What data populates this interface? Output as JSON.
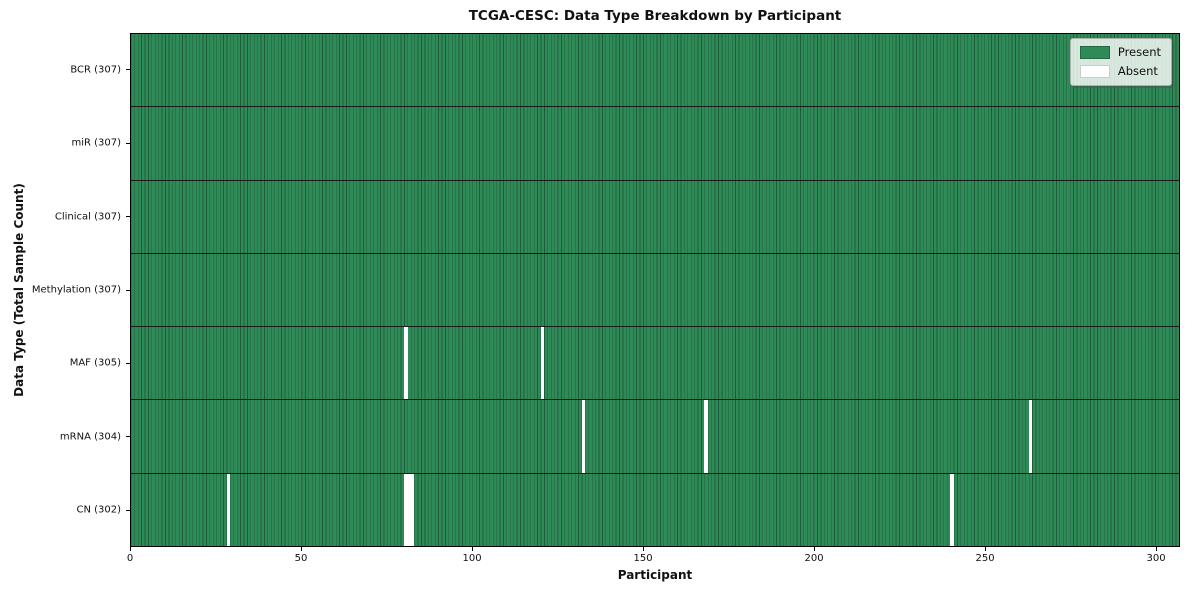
{
  "chart_data": {
    "type": "heatmap",
    "title": "TCGA-CESC: Data Type Breakdown by Participant",
    "xlabel": "Participant",
    "ylabel": "Data Type (Total Sample Count)",
    "n_participants": 307,
    "xlim": [
      0,
      307
    ],
    "x_ticks": [
      0,
      50,
      100,
      150,
      200,
      250,
      300
    ],
    "grid": false,
    "legend_position": "upper right",
    "legend": [
      {
        "label": "Present",
        "color": "#2e8b57"
      },
      {
        "label": "Absent",
        "color": "#ffffff"
      }
    ],
    "rows": [
      {
        "label": "BCR (307)",
        "data_type": "BCR",
        "present_count": 307,
        "absent_indices": []
      },
      {
        "label": "miR (307)",
        "data_type": "miR",
        "present_count": 307,
        "absent_indices": []
      },
      {
        "label": "Clinical (307)",
        "data_type": "Clinical",
        "present_count": 307,
        "absent_indices": []
      },
      {
        "label": "Methylation (307)",
        "data_type": "Methylation",
        "present_count": 307,
        "absent_indices": []
      },
      {
        "label": "MAF (305)",
        "data_type": "MAF",
        "present_count": 305,
        "absent_indices": [
          80,
          120
        ]
      },
      {
        "label": "mRNA (304)",
        "data_type": "mRNA",
        "present_count": 304,
        "absent_indices": [
          132,
          168,
          263
        ]
      },
      {
        "label": "CN (302)",
        "data_type": "CN",
        "present_count": 302,
        "absent_indices": [
          28,
          80,
          81,
          82,
          240
        ]
      }
    ],
    "colors": {
      "present": "#2e8b57",
      "absent": "#ffffff",
      "cell_edge": "#1d5c3a",
      "row_divider": "#1a1a1a"
    }
  }
}
